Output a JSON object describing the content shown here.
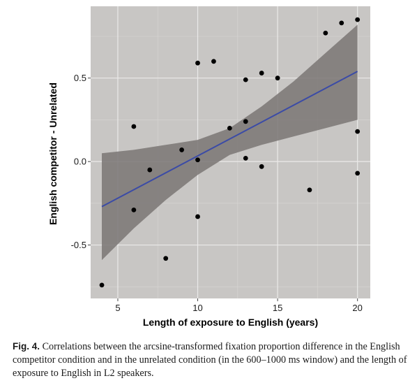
{
  "chart_data": {
    "type": "scatter",
    "xlabel": "Length of exposure to English (years)",
    "ylabel": "English competitor - Unrelated",
    "xlim": [
      3.3,
      20.8
    ],
    "ylim": [
      -0.82,
      0.93
    ],
    "x_ticks": [
      5,
      10,
      15,
      20
    ],
    "y_ticks": [
      -0.5,
      0.0,
      0.5
    ],
    "x_tick_labels": [
      "5",
      "10",
      "15",
      "20"
    ],
    "y_tick_labels": [
      "-0.5",
      "0.0",
      "0.5"
    ],
    "grid": true,
    "background_color": "#c8c6c4",
    "points": [
      {
        "x": 4,
        "y": -0.74
      },
      {
        "x": 6,
        "y": 0.21
      },
      {
        "x": 6,
        "y": -0.29
      },
      {
        "x": 7,
        "y": -0.05
      },
      {
        "x": 8,
        "y": -0.58
      },
      {
        "x": 9,
        "y": 0.07
      },
      {
        "x": 10,
        "y": 0.59
      },
      {
        "x": 10,
        "y": 0.01
      },
      {
        "x": 10,
        "y": -0.33
      },
      {
        "x": 11,
        "y": 0.6
      },
      {
        "x": 12,
        "y": 0.2
      },
      {
        "x": 13,
        "y": 0.49
      },
      {
        "x": 13,
        "y": 0.24
      },
      {
        "x": 13,
        "y": 0.02
      },
      {
        "x": 14,
        "y": 0.53
      },
      {
        "x": 14,
        "y": -0.03
      },
      {
        "x": 15,
        "y": 0.5
      },
      {
        "x": 17,
        "y": -0.17
      },
      {
        "x": 18,
        "y": 0.77
      },
      {
        "x": 19,
        "y": 0.83
      },
      {
        "x": 20,
        "y": 0.85
      },
      {
        "x": 20,
        "y": 0.18
      },
      {
        "x": 20,
        "y": -0.07
      }
    ],
    "fit_line": {
      "x": [
        4,
        20
      ],
      "y": [
        -0.27,
        0.54
      ],
      "color": "#3b4ba6"
    },
    "confidence_band": {
      "x": [
        4,
        6,
        8,
        10,
        12,
        14,
        16,
        18,
        20
      ],
      "lower": [
        -0.59,
        -0.4,
        -0.23,
        -0.08,
        0.04,
        0.1,
        0.15,
        0.2,
        0.25
      ],
      "upper": [
        0.05,
        0.07,
        0.1,
        0.13,
        0.2,
        0.33,
        0.48,
        0.65,
        0.82
      ],
      "color": "#7a7674"
    },
    "point_color": "#000000"
  },
  "caption": {
    "label": "Fig. 4.",
    "text": "Correlations between the arcsine-transformed fixation proportion difference in the English competitor condition and in the unrelated condition (in the 600–1000 ms window) and the length of exposure to English in L2 speakers."
  }
}
